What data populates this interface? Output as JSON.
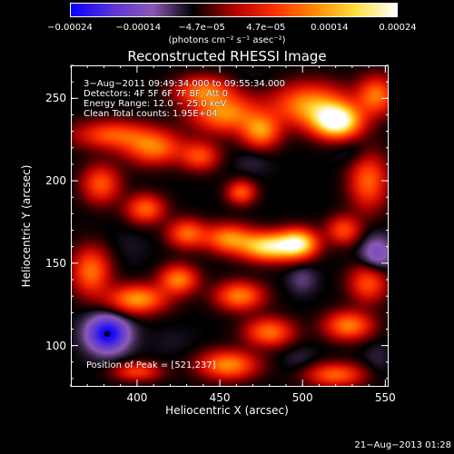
{
  "colorbar": {
    "ticks": [
      {
        "label": "−0.00024",
        "value": -0.00024
      },
      {
        "label": "−0.00014",
        "value": -0.00014
      },
      {
        "label": "−4.7e−05",
        "value": -4.7e-05
      },
      {
        "label": "4.7e−05",
        "value": 4.7e-05
      },
      {
        "label": "0.00014",
        "value": 0.00014
      },
      {
        "label": "0.00024",
        "value": 0.00024
      }
    ],
    "range": [
      -0.00024,
      0.00024
    ],
    "units": "(photons cm⁻² s⁻¹ asec⁻²)",
    "colors": [
      "#0a00ff",
      "#5a34d8",
      "#8c5ab4",
      "#000000",
      "#b00000",
      "#ff3000",
      "#ff8c00",
      "#ffe040",
      "#ffffff"
    ]
  },
  "chart_data": {
    "type": "heatmap",
    "title": "Reconstructed RHESSI Image",
    "xlabel": "Heliocentric X (arcsec)",
    "ylabel": "Heliocentric Y (arcsec)",
    "xlim": [
      360,
      552
    ],
    "ylim": [
      75,
      270
    ],
    "x_ticks": [
      400,
      450,
      500,
      550
    ],
    "y_ticks": [
      100,
      150,
      200,
      250
    ],
    "annotations": [
      "3−Aug−2011 09:49:34.000 to 09:55:34.000",
      "Detectors: 4F 5F 6F 7F 8F, Att 0",
      "Energy Range: 12.0 − 25.0 keV",
      "Clean     Total counts: 1.95E+04"
    ],
    "peak_label": "Position of Peak = [521,237]",
    "peak_position": [
      521,
      237
    ],
    "minimum_marker": [
      382,
      107
    ],
    "blobs": [
      {
        "x": 521,
        "y": 236,
        "sx": 10,
        "sy": 7,
        "v": 0.00024
      },
      {
        "x": 505,
        "y": 246,
        "sx": 16,
        "sy": 9,
        "v": 0.00013
      },
      {
        "x": 545,
        "y": 252,
        "sx": 8,
        "sy": 8,
        "v": 0.0001
      },
      {
        "x": 475,
        "y": 230,
        "sx": 8,
        "sy": 7,
        "v": 0.00011
      },
      {
        "x": 453,
        "y": 241,
        "sx": 14,
        "sy": 8,
        "v": 0.00012
      },
      {
        "x": 440,
        "y": 255,
        "sx": 12,
        "sy": 6,
        "v": 9e-05
      },
      {
        "x": 410,
        "y": 220,
        "sx": 12,
        "sy": 7,
        "v": 0.0001
      },
      {
        "x": 385,
        "y": 228,
        "sx": 16,
        "sy": 6,
        "v": 8e-05
      },
      {
        "x": 438,
        "y": 215,
        "sx": 8,
        "sy": 6,
        "v": 7e-05
      },
      {
        "x": 378,
        "y": 198,
        "sx": 8,
        "sy": 8,
        "v": 8e-05
      },
      {
        "x": 372,
        "y": 145,
        "sx": 8,
        "sy": 10,
        "v": 0.0001
      },
      {
        "x": 405,
        "y": 183,
        "sx": 8,
        "sy": 6,
        "v": 9e-05
      },
      {
        "x": 430,
        "y": 168,
        "sx": 8,
        "sy": 6,
        "v": 9e-05
      },
      {
        "x": 455,
        "y": 165,
        "sx": 10,
        "sy": 6,
        "v": 0.00011
      },
      {
        "x": 480,
        "y": 160,
        "sx": 12,
        "sy": 6,
        "v": 0.0002
      },
      {
        "x": 498,
        "y": 162,
        "sx": 8,
        "sy": 6,
        "v": 0.00017
      },
      {
        "x": 463,
        "y": 193,
        "sx": 6,
        "sy": 5,
        "v": 8e-05
      },
      {
        "x": 540,
        "y": 200,
        "sx": 8,
        "sy": 12,
        "v": 9e-05
      },
      {
        "x": 525,
        "y": 170,
        "sx": 7,
        "sy": 6,
        "v": 7e-05
      },
      {
        "x": 400,
        "y": 128,
        "sx": 12,
        "sy": 6,
        "v": 0.00013
      },
      {
        "x": 425,
        "y": 140,
        "sx": 8,
        "sy": 6,
        "v": 0.00011
      },
      {
        "x": 462,
        "y": 130,
        "sx": 10,
        "sy": 6,
        "v": 0.00011
      },
      {
        "x": 480,
        "y": 108,
        "sx": 10,
        "sy": 6,
        "v": 0.0001
      },
      {
        "x": 528,
        "y": 112,
        "sx": 10,
        "sy": 6,
        "v": 0.00011
      },
      {
        "x": 540,
        "y": 138,
        "sx": 8,
        "sy": 8,
        "v": 8e-05
      },
      {
        "x": 455,
        "y": 88,
        "sx": 12,
        "sy": 6,
        "v": 0.00012
      },
      {
        "x": 400,
        "y": 84,
        "sx": 10,
        "sy": 4,
        "v": 6e-05
      },
      {
        "x": 520,
        "y": 82,
        "sx": 12,
        "sy": 5,
        "v": 9e-05
      },
      {
        "x": 382,
        "y": 107,
        "sx": 9,
        "sy": 8,
        "v": -0.00024
      },
      {
        "x": 545,
        "y": 155,
        "sx": 7,
        "sy": 8,
        "v": -0.00015
      },
      {
        "x": 500,
        "y": 140,
        "sx": 6,
        "sy": 6,
        "v": -0.0001
      },
      {
        "x": 532,
        "y": 217,
        "sx": 8,
        "sy": 6,
        "v": -9e-05
      },
      {
        "x": 395,
        "y": 160,
        "sx": 10,
        "sy": 8,
        "v": -7e-05
      },
      {
        "x": 470,
        "y": 212,
        "sx": 8,
        "sy": 6,
        "v": -8e-05
      },
      {
        "x": 422,
        "y": 102,
        "sx": 10,
        "sy": 6,
        "v": -7e-05
      },
      {
        "x": 498,
        "y": 92,
        "sx": 8,
        "sy": 6,
        "v": -8e-05
      },
      {
        "x": 370,
        "y": 175,
        "sx": 6,
        "sy": 6,
        "v": -6e-05
      },
      {
        "x": 470,
        "y": 262,
        "sx": 10,
        "sy": 5,
        "v": -7e-05
      },
      {
        "x": 545,
        "y": 92,
        "sx": 6,
        "sy": 8,
        "v": -8e-05
      }
    ],
    "background_value": -6e-05
  },
  "footer": {
    "date": "21−Aug−2013 01:28"
  }
}
